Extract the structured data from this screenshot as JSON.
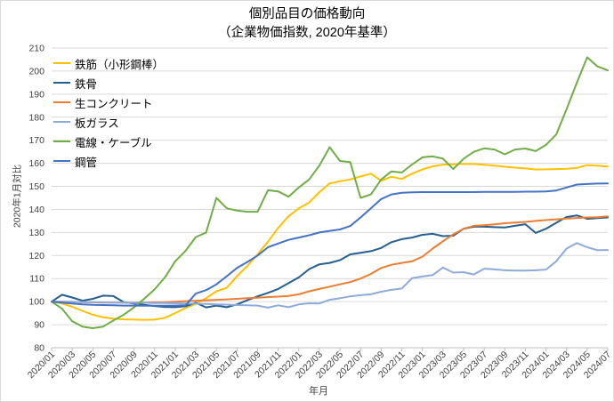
{
  "chart_data": {
    "type": "line",
    "title": "個別品目の価格動向",
    "subtitle": "（企業物価指数, 2020年基準）",
    "ylabel": "2020年1月対比",
    "xlabel": "年月",
    "ylim": [
      80,
      210
    ],
    "ytick_step": 10,
    "grid": true,
    "legend_position": "top-left-inside",
    "xtick_every": 2,
    "x": [
      "2020/01",
      "2020/02",
      "2020/03",
      "2020/04",
      "2020/05",
      "2020/06",
      "2020/07",
      "2020/08",
      "2020/09",
      "2020/10",
      "2020/11",
      "2020/12",
      "2021/01",
      "2021/02",
      "2021/03",
      "2021/04",
      "2021/05",
      "2021/06",
      "2021/07",
      "2021/08",
      "2021/09",
      "2021/10",
      "2021/11",
      "2021/12",
      "2022/01",
      "2022/02",
      "2022/03",
      "2022/04",
      "2022/05",
      "2022/06",
      "2022/07",
      "2022/08",
      "2022/09",
      "2022/10",
      "2022/11",
      "2022/12",
      "2023/01",
      "2023/02",
      "2023/03",
      "2023/04",
      "2023/05",
      "2023/06",
      "2023/07",
      "2023/08",
      "2023/09",
      "2023/10",
      "2023/11",
      "2023/12",
      "2024/01",
      "2024/02",
      "2024/03",
      "2024/04",
      "2024/05",
      "2024/06",
      "2024/07"
    ],
    "series": [
      {
        "name": "鉄筋（小形鋼棒）",
        "color": "#FFC000",
        "values": [
          100,
          99.2,
          97.8,
          96,
          94.3,
          93.2,
          92.6,
          92.3,
          92.2,
          92.1,
          92.2,
          93,
          95,
          97.3,
          99,
          101.5,
          104.5,
          106,
          111,
          115.5,
          120.5,
          126,
          132,
          137,
          140.5,
          143,
          147.5,
          151.3,
          152.2,
          153,
          154.3,
          155.5,
          152.4,
          154.2,
          153.2,
          155.5,
          157.4,
          158.7,
          159.4,
          159.6,
          159.7,
          159.7,
          159.4,
          159,
          158.5,
          158.1,
          157.8,
          157.3,
          157.4,
          157.5,
          157.6,
          158,
          159.2,
          159,
          158.6
        ]
      },
      {
        "name": "鉄骨",
        "color": "#255E91",
        "values": [
          100,
          103,
          101.8,
          100.4,
          101.2,
          102.6,
          102.4,
          99.8,
          99.2,
          98.6,
          98.1,
          97.7,
          97.6,
          98,
          99.5,
          97.5,
          98.3,
          97.6,
          98.8,
          100.6,
          102.3,
          103.8,
          105.5,
          108,
          110.5,
          114.1,
          116.2,
          116.8,
          118,
          120.5,
          121.2,
          121.9,
          123.3,
          125.8,
          127.1,
          127.8,
          129,
          129.4,
          128.4,
          128.6,
          131.6,
          132.5,
          132.5,
          132.3,
          132.2,
          132.9,
          133.6,
          129.8,
          131.6,
          134.2,
          136.7,
          137.4,
          135.9,
          136.2,
          136.5
        ]
      },
      {
        "name": "生コンクリート",
        "color": "#ED7D31",
        "values": [
          100,
          100,
          99.9,
          99.8,
          99.7,
          99.6,
          99.6,
          99.5,
          99.5,
          99.6,
          99.7,
          99.8,
          100,
          100.2,
          100.4,
          100.6,
          100.8,
          101,
          101.2,
          101.5,
          101.7,
          102,
          102.2,
          102.5,
          103.2,
          104.5,
          105.5,
          106.5,
          107.5,
          108.5,
          110,
          112,
          114.6,
          116,
          116.8,
          117.5,
          119.5,
          123,
          126.2,
          129.2,
          131.6,
          132.9,
          133.1,
          133.5,
          134,
          134.3,
          134.6,
          135,
          135.4,
          135.7,
          136,
          136.3,
          136.5,
          136.6,
          137
        ]
      },
      {
        "name": "板ガラス",
        "color": "#8EAADB",
        "values": [
          100,
          100,
          99.9,
          99.8,
          99.8,
          99.7,
          99.6,
          99.6,
          99.5,
          99.5,
          99.4,
          99.4,
          99.3,
          99.2,
          99.1,
          99,
          98.8,
          98.7,
          98.5,
          98.4,
          98.3,
          97.4,
          98.4,
          97.6,
          98.8,
          99.3,
          99.2,
          100.8,
          101.5,
          102.3,
          102.8,
          103.2,
          104.3,
          105.1,
          105.7,
          110.2,
          110.9,
          111.5,
          114.8,
          112.6,
          112.8,
          111.8,
          114.3,
          114,
          113.6,
          113.5,
          113.5,
          113.6,
          113.9,
          117.5,
          123,
          125.4,
          123.6,
          122.3,
          122.4
        ]
      },
      {
        "name": "電線・ケーブル",
        "color": "#70AD47",
        "values": [
          100,
          97,
          91.5,
          89.2,
          88.5,
          89.2,
          91.8,
          94.3,
          97.5,
          101.3,
          105.3,
          110.5,
          117.5,
          122,
          128,
          130,
          145,
          140.5,
          139.5,
          139,
          139,
          148.3,
          147.8,
          145.5,
          149.5,
          153,
          159,
          167,
          161,
          160.5,
          145,
          146.5,
          153,
          156.5,
          156,
          159.5,
          162.6,
          163,
          162,
          157.5,
          162,
          165,
          166.5,
          166,
          163.9,
          166,
          166.4,
          165.3,
          168,
          172.5,
          183.5,
          195,
          206,
          202,
          200.3
        ]
      },
      {
        "name": "鋼管",
        "color": "#4472C4",
        "values": [
          100,
          99.6,
          99.2,
          98.8,
          98.6,
          98.5,
          98.4,
          98.3,
          98.3,
          98.2,
          98.2,
          98.2,
          98.3,
          98.4,
          103.5,
          105,
          107.5,
          111,
          114.6,
          117.2,
          120,
          123.6,
          125.2,
          126.8,
          127.8,
          128.8,
          130,
          130.7,
          131.3,
          132.8,
          136.5,
          140.5,
          144.5,
          146.5,
          147.2,
          147.4,
          147.5,
          147.5,
          147.5,
          147.5,
          147.5,
          147.5,
          147.6,
          147.6,
          147.6,
          147.6,
          147.7,
          147.7,
          147.8,
          148.2,
          149.5,
          150.8,
          151,
          151.2,
          151.3
        ]
      }
    ]
  }
}
